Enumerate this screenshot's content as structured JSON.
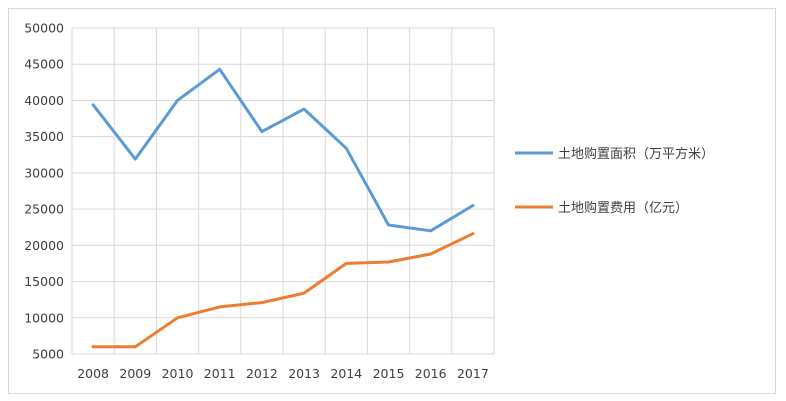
{
  "chart_data": {
    "type": "line",
    "x": [
      "2008",
      "2009",
      "2010",
      "2011",
      "2012",
      "2013",
      "2014",
      "2015",
      "2016",
      "2017"
    ],
    "ylim": [
      5000,
      50000
    ],
    "yticks": [
      5000,
      10000,
      15000,
      20000,
      25000,
      30000,
      35000,
      40000,
      45000,
      50000
    ],
    "grid": true,
    "legend_position": "right",
    "series": [
      {
        "name": "土地购置面积（万平方米）",
        "color": "#5b9bd5",
        "values": [
          39400,
          31900,
          40000,
          44300,
          35700,
          38800,
          33400,
          22800,
          22000,
          25500
        ]
      },
      {
        "name": "土地购置费用（亿元）",
        "color": "#ed7d31",
        "values": [
          6000,
          6000,
          10000,
          11500,
          12100,
          13400,
          17500,
          17700,
          18800,
          21600
        ]
      }
    ]
  }
}
